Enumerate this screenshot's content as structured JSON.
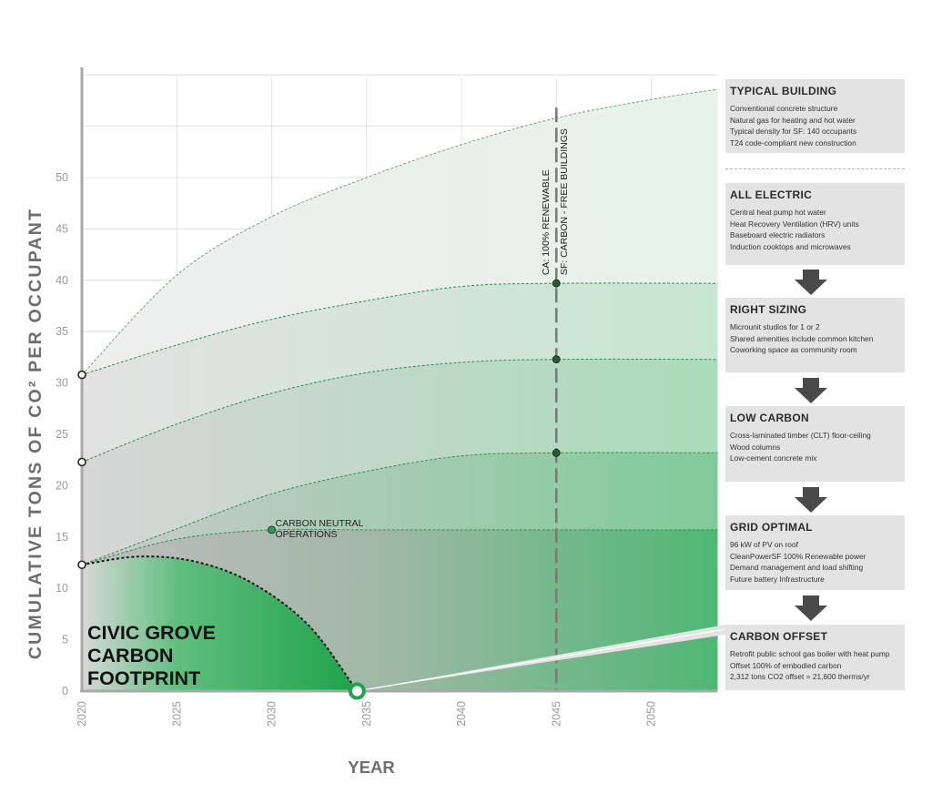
{
  "chart_data": {
    "type": "area",
    "ylabel": "CUMULATIVE TONS OF CO² PER OCCUPANT",
    "xlabel": "YEAR",
    "x_ticks": [
      "2020",
      "2025",
      "2030",
      "2035",
      "2040",
      "2045",
      "2050"
    ],
    "y_ticks": [
      "0",
      "5",
      "10",
      "15",
      "20",
      "25",
      "30",
      "35",
      "40",
      "45",
      "50"
    ],
    "xlim": [
      2020,
      2053.5
    ],
    "ylim": [
      0,
      60
    ],
    "grid": true,
    "series": [
      {
        "name": "TYPICAL BUILDING",
        "points": [
          [
            2020,
            30.8
          ],
          [
            2025,
            40.5
          ],
          [
            2030,
            46.2
          ],
          [
            2035,
            50.0
          ],
          [
            2040,
            53.2
          ],
          [
            2045,
            55.8
          ],
          [
            2050,
            57.6
          ],
          [
            2053.5,
            58.6
          ]
        ]
      },
      {
        "name": "ALL ELECTRIC",
        "points": [
          [
            2020,
            30.8
          ],
          [
            2025,
            33.7
          ],
          [
            2030,
            36.2
          ],
          [
            2035,
            38.0
          ],
          [
            2040,
            39.4
          ],
          [
            2045,
            39.7
          ],
          [
            2053.5,
            39.7
          ]
        ]
      },
      {
        "name": "RIGHT SIZING",
        "points": [
          [
            2020,
            22.3
          ],
          [
            2025,
            26.0
          ],
          [
            2030,
            29.0
          ],
          [
            2035,
            31.0
          ],
          [
            2040,
            32.0
          ],
          [
            2045,
            32.3
          ],
          [
            2053.5,
            32.3
          ]
        ]
      },
      {
        "name": "LOW CARBON",
        "points": [
          [
            2020,
            12.3
          ],
          [
            2025,
            15.8
          ],
          [
            2030,
            19.2
          ],
          [
            2035,
            21.4
          ],
          [
            2040,
            22.9
          ],
          [
            2045,
            23.2
          ],
          [
            2053.5,
            23.2
          ]
        ]
      },
      {
        "name": "GRID OPTIMAL",
        "points": [
          [
            2020,
            12.3
          ],
          [
            2025,
            14.8
          ],
          [
            2030,
            15.7
          ],
          [
            2035,
            15.7
          ],
          [
            2045,
            15.7
          ],
          [
            2053.5,
            15.7
          ]
        ]
      },
      {
        "name": "CIVIC GROVE CARBON FOOTPRINT",
        "points": [
          [
            2020,
            12.3
          ],
          [
            2023,
            13.1
          ],
          [
            2026,
            12.6
          ],
          [
            2029,
            10.5
          ],
          [
            2032,
            6.3
          ],
          [
            2034.5,
            0
          ]
        ]
      }
    ],
    "annotations": {
      "carbon_neutral": [
        "CARBON NEUTRAL",
        "OPERATIONS"
      ],
      "year_2045_a": "CA: 100% RENEWABLE",
      "year_2045_b": "SF: CARBON - FREE BUILDINGS",
      "footprint": [
        "CIVIC GROVE",
        "CARBON",
        "FOOTPRINT"
      ]
    },
    "markers": [
      {
        "x": 2020,
        "y": 30.8,
        "style": "open"
      },
      {
        "x": 2020,
        "y": 22.3,
        "style": "open"
      },
      {
        "x": 2020,
        "y": 12.3,
        "style": "open"
      },
      {
        "x": 2030,
        "y": 15.7,
        "style": "filled"
      },
      {
        "x": 2045,
        "y": 39.7,
        "style": "filled"
      },
      {
        "x": 2045,
        "y": 32.3,
        "style": "filled"
      },
      {
        "x": 2045,
        "y": 23.2,
        "style": "filled"
      },
      {
        "x": 2034.5,
        "y": 0,
        "style": "ring"
      }
    ],
    "colors": {
      "green": "#1fa34a",
      "grid": "#d8d8d8",
      "axis": "#a8a8a8",
      "dark": "#333333",
      "gray": "#c4c4c4",
      "panel": "#e3e3e4"
    }
  },
  "panels": [
    {
      "title": "TYPICAL BUILDING",
      "lines": [
        "Conventional concrete structure",
        "Natural gas for heating and hot water",
        "Typical density for SF: 140 occupants",
        "T24 code-compliant new construction"
      ]
    },
    {
      "title": "ALL ELECTRIC",
      "lines": [
        "Central heat pump hot water",
        "Heat Recovery Ventilation (HRV) units",
        "Baseboard electric radiators",
        "Induction cooktops and microwaves"
      ]
    },
    {
      "title": "RIGHT SIZING",
      "lines": [
        "Microunit studios for 1 or 2",
        "Shared amenities include common kitchen",
        "Coworking space as community room"
      ]
    },
    {
      "title": "LOW CARBON",
      "lines": [
        "Cross-laminated timber (CLT) floor-ceiling",
        "Wood columns",
        "Low-cement concrete mix"
      ]
    },
    {
      "title": "GRID OPTIMAL",
      "lines": [
        "96 kW of PV on roof",
        "CleanPowerSF 100% Renewable power",
        "Demand management and load shifting",
        "Future battery Infrastructure"
      ]
    },
    {
      "title": "CARBON OFFSET",
      "lines": [
        "Retrofit public school gas boiler with heat pump",
        "Offset 100% of embodied carbon",
        "2,312 tons CO2 offset = 21,600 therms/yr"
      ]
    }
  ]
}
